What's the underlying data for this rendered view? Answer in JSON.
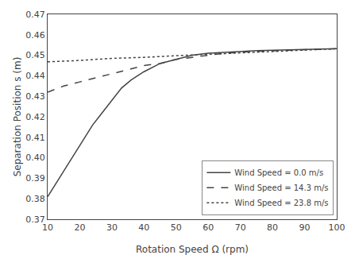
{
  "chart_data": {
    "type": "line",
    "title": "",
    "xlabel": "Rotation Speed Ω (rpm)",
    "ylabel": "Separation Position s (m)",
    "xlim": [
      10,
      100
    ],
    "ylim": [
      0.37,
      0.47
    ],
    "xticks": [
      10,
      20,
      30,
      40,
      50,
      60,
      70,
      80,
      90,
      100
    ],
    "yticks": [
      0.37,
      0.38,
      0.39,
      {
        "value": 0.4,
        "label": "0.40"
      },
      0.41,
      0.42,
      0.43,
      0.44,
      0.45,
      0.46,
      0.47
    ],
    "grid": false,
    "legend": "lower right",
    "series": [
      {
        "name": "Wind Speed = 0.0 m/s",
        "color": "#444444",
        "line_style": "solid",
        "x": [
          10,
          12,
          14,
          16,
          18,
          20,
          22,
          24,
          26,
          28,
          30,
          33,
          36,
          40,
          45,
          50,
          55,
          60,
          65,
          70,
          75,
          80,
          85,
          90,
          95,
          100
        ],
        "values": [
          0.381,
          0.386,
          0.391,
          0.396,
          0.401,
          0.406,
          0.411,
          0.416,
          0.42,
          0.424,
          0.428,
          0.434,
          0.438,
          0.442,
          0.446,
          0.448,
          0.45,
          0.451,
          0.4515,
          0.452,
          0.4523,
          0.4525,
          0.4527,
          0.453,
          0.4531,
          0.4532
        ]
      },
      {
        "name": "Wind Speed = 14.3 m/s",
        "color": "#444444",
        "line_style": "dash",
        "x": [
          10,
          15,
          20,
          25,
          30,
          35,
          40,
          45,
          50,
          55,
          60,
          65,
          70,
          75,
          80,
          85,
          90,
          95,
          100
        ],
        "values": [
          0.432,
          0.435,
          0.437,
          0.439,
          0.441,
          0.443,
          0.445,
          0.446,
          0.448,
          0.449,
          0.45,
          0.451,
          0.4515,
          0.452,
          0.4522,
          0.4525,
          0.4528,
          0.453,
          0.4532
        ]
      },
      {
        "name": "Wind Speed = 23.8 m/s",
        "color": "#444444",
        "line_style": "dot",
        "x": [
          10,
          20,
          30,
          40,
          50,
          60,
          70,
          80,
          90,
          100
        ],
        "values": [
          0.4468,
          0.4475,
          0.4485,
          0.449,
          0.4498,
          0.4505,
          0.451,
          0.4518,
          0.4525,
          0.4532
        ]
      }
    ]
  }
}
